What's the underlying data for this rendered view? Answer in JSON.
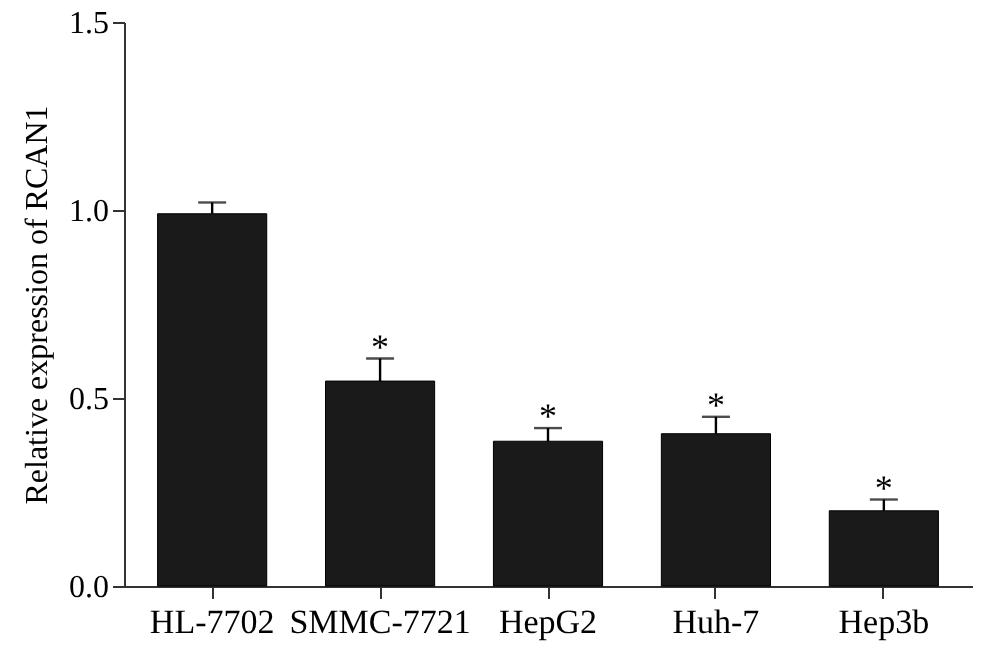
{
  "chart_data": {
    "type": "bar",
    "ylabel": "Relative expression of RCAN1",
    "categories": [
      "HL-7702",
      "SMMC-7721",
      "HepG2",
      "Huh-7",
      "Hep3b"
    ],
    "values": [
      0.99,
      0.545,
      0.385,
      0.405,
      0.2
    ],
    "errors": [
      [
        0.99,
        1.02
      ],
      [
        0.545,
        0.605
      ],
      [
        0.385,
        0.42
      ],
      [
        0.405,
        0.45
      ],
      [
        0.2,
        0.23
      ]
    ],
    "color": "#1a1a1a",
    "ylim": [
      0,
      1.5
    ],
    "yticks": [
      {
        "value": 0,
        "label": "0.0"
      },
      {
        "value": 0.5,
        "label": "0.5"
      },
      {
        "value": 1,
        "label": "1.0"
      },
      {
        "value": 1.5,
        "label": "1.5"
      }
    ],
    "grid": false,
    "annotations": [
      {
        "text": "*",
        "x": "SMMC-7721",
        "y": 0.62
      },
      {
        "text": "*",
        "x": "HepG2",
        "y": 0.435
      },
      {
        "text": "*",
        "x": "Huh-7",
        "y": 0.465
      },
      {
        "text": "*",
        "x": "Hep3b",
        "y": 0.245
      }
    ]
  }
}
